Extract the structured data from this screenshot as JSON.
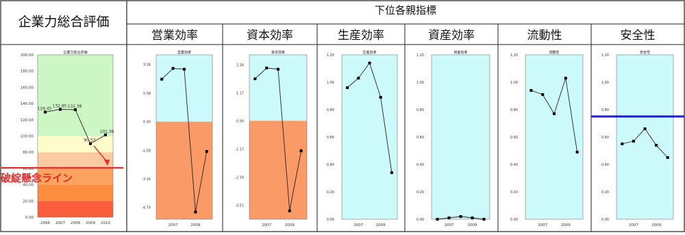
{
  "header": {
    "left_title": "企業力総合評価",
    "group_title": "下位各親指標",
    "columns": [
      "営業効率",
      "資本効率",
      "生産効率",
      "資産効率",
      "流動性",
      "安全性"
    ]
  },
  "annotation": {
    "danger_line_label": "破綻懸念ライン"
  },
  "colors": {
    "band_green": "#ccf7c4",
    "band_lightyellow": "#fffccc",
    "band_peach": "#fcc9a0",
    "band_orange1": "#fca45f",
    "band_orange2": "#fc8c3e",
    "band_red": "#fc5d3c",
    "cyan_bg": "#ccf9f9",
    "negative_bg": "#fa9a66",
    "line": "#222222",
    "marker": "#000000",
    "danger_red": "#e8282a",
    "threshold_blue": "#1c1ccc"
  },
  "chart_data": [
    {
      "id": "overall",
      "type": "line",
      "title": "企業力総合評価",
      "x": [
        "2006",
        "2007",
        "2008",
        "2009",
        "2010"
      ],
      "y": [
        129.45,
        132.85,
        132.38,
        90.53,
        101.36
      ],
      "data_labels": [
        "129.45",
        "132.85",
        "132.38",
        "90.53",
        "101.36"
      ],
      "yticks": [
        "0.00",
        "20.00",
        "40.00",
        "60.00",
        "80.00",
        "100.00",
        "120.00",
        "140.00",
        "160.00",
        "180.00",
        "200.00"
      ],
      "ylim": [
        0,
        200
      ],
      "bands": [
        {
          "from": 0,
          "to": 20,
          "color": "band_red"
        },
        {
          "from": 20,
          "to": 40,
          "color": "band_orange2"
        },
        {
          "from": 40,
          "to": 60,
          "color": "band_orange1"
        },
        {
          "from": 60,
          "to": 80,
          "color": "band_peach"
        },
        {
          "from": 80,
          "to": 100,
          "color": "band_lightyellow"
        },
        {
          "from": 100,
          "to": 200,
          "color": "band_green"
        }
      ]
    },
    {
      "id": "eigyo",
      "type": "line",
      "title": "営業効率",
      "x": [
        2006,
        2007,
        2008,
        2009,
        2010
      ],
      "y": [
        2.35,
        2.95,
        2.9,
        -5.0,
        -1.65
      ],
      "xticks": [
        "2007",
        "2009"
      ],
      "yticks": [
        "-4.74",
        "-3.16",
        "-1.58",
        "0.00",
        "1.58",
        "3.16"
      ],
      "ylim": [
        -5.4,
        3.7
      ],
      "zero_split": true
    },
    {
      "id": "shihon",
      "type": "line",
      "title": "資本効率",
      "x": [
        2006,
        2007,
        2008,
        2009,
        2010
      ],
      "y": [
        1.75,
        2.2,
        2.15,
        -3.75,
        -1.25
      ],
      "xticks": [
        "2007",
        "2009"
      ],
      "yticks": [
        "-3.51",
        "-2.34",
        "-1.17",
        "0.00",
        "1.17",
        "2.34"
      ],
      "ylim": [
        -4.1,
        2.75
      ],
      "zero_split": true
    },
    {
      "id": "seisan",
      "type": "line",
      "title": "生産効率",
      "x": [
        2006,
        2007,
        2008,
        2009,
        2010
      ],
      "y": [
        0.96,
        1.03,
        1.14,
        0.89,
        0.34
      ],
      "xticks": [
        "2007",
        "2009"
      ],
      "yticks": [
        "0.00",
        "0.20",
        "0.40",
        "0.60",
        "0.80",
        "1.00",
        "1.20"
      ],
      "ylim": [
        0,
        1.2
      ]
    },
    {
      "id": "shisan",
      "type": "line",
      "title": "資産効率",
      "x": [
        2006,
        2007,
        2008,
        2009,
        2010
      ],
      "y": [
        0.0,
        0.01,
        0.02,
        0.01,
        0.0
      ],
      "xticks": [
        "2007",
        "2009"
      ],
      "yticks": [
        "0.00",
        "0.20",
        "0.40",
        "0.60",
        "0.80",
        "1.00",
        "1.20"
      ],
      "ylim": [
        0,
        1.2
      ]
    },
    {
      "id": "ryudo",
      "type": "line",
      "title": "流動性",
      "x": [
        2006,
        2007,
        2008,
        2009,
        2010
      ],
      "y": [
        0.94,
        0.91,
        0.77,
        1.03,
        0.49
      ],
      "xticks": [
        "2007",
        "2009"
      ],
      "yticks": [
        "0.00",
        "0.20",
        "0.40",
        "0.60",
        "0.80",
        "1.00",
        "1.20"
      ],
      "ylim": [
        0,
        1.2
      ]
    },
    {
      "id": "anzen",
      "type": "line",
      "title": "安全性",
      "x": [
        2006,
        2007,
        2008,
        2009,
        2010
      ],
      "y": [
        0.55,
        0.57,
        0.66,
        0.54,
        0.45
      ],
      "xticks": [
        "2007",
        "2009"
      ],
      "yticks": [
        "0.00",
        "0.20",
        "0.40",
        "0.60",
        "0.80",
        "1.00",
        "1.20"
      ],
      "ylim": [
        0,
        1.2
      ]
    }
  ]
}
